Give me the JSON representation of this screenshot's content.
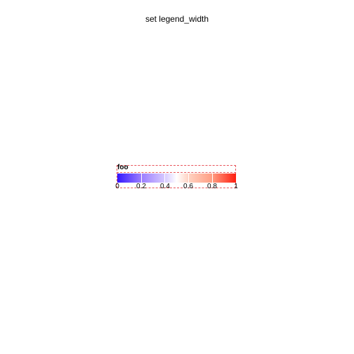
{
  "plot": {
    "title": "set legend_width"
  },
  "legend": {
    "title": "foo",
    "color_low": "#3516ff",
    "color_mid": "#ffffff",
    "color_high": "#ff1d0f",
    "frame_color": "#e8545a",
    "range": [
      0,
      1
    ],
    "ticks": [
      "0",
      "0.2",
      "0.4",
      "0.6",
      "0.8",
      "1"
    ]
  }
}
